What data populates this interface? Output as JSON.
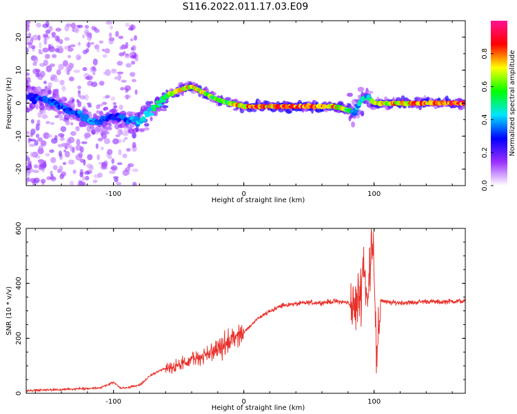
{
  "title": "S116.2022.011.17.03.E09",
  "colors": {
    "snr_line": "#e8302a",
    "spectrogram_background": "#ffffff"
  },
  "chart_data": [
    {
      "type": "heatmap",
      "title": "S116.2022.011.17.03.E09",
      "xlabel": "Height of straight line (km)",
      "ylabel": "Frequency (Hz)",
      "xlim": [
        -167,
        170
      ],
      "ylim": [
        -25,
        25
      ],
      "x_ticks": [
        -100,
        0,
        100
      ],
      "x_tick_labels": [
        "-100",
        "0",
        "100"
      ],
      "y_ticks": [
        -20,
        -10,
        0,
        10,
        20
      ],
      "y_tick_labels": [
        "-20",
        "-10",
        "0",
        "10",
        "20"
      ],
      "colorbar": {
        "label": "Normalized spectral amplitude",
        "range": [
          0,
          1
        ],
        "ticks": [
          0.0,
          0.2,
          0.4,
          0.6,
          0.8
        ],
        "tick_labels": [
          "0.0",
          "0.2",
          "0.4",
          "0.6",
          "0.8"
        ],
        "colormap": [
          "#ffffff",
          "#9b30ff",
          "#0000ff",
          "#00e5ff",
          "#00ff00",
          "#ffff00",
          "#ff0000",
          "#ff1493"
        ]
      },
      "ridge": {
        "x": [
          -167,
          -150,
          -130,
          -115,
          -100,
          -90,
          -80,
          -70,
          -60,
          -50,
          -40,
          -30,
          -20,
          -10,
          0,
          20,
          40,
          60,
          70,
          80,
          85,
          90,
          95,
          100,
          120,
          140,
          170
        ],
        "y": [
          2,
          1,
          -3,
          -6,
          -4,
          -5,
          -6,
          -2,
          2,
          4,
          5,
          3,
          1,
          0,
          -1,
          -1,
          -1,
          -1,
          -1,
          -2,
          -3,
          1,
          2,
          0,
          0,
          0,
          0
        ],
        "amplitude": [
          0.3,
          0.35,
          0.35,
          0.4,
          0.3,
          0.35,
          0.45,
          0.55,
          0.6,
          0.7,
          0.75,
          0.7,
          0.6,
          0.65,
          0.85,
          0.85,
          0.9,
          0.88,
          0.8,
          0.6,
          0.4,
          0.5,
          0.45,
          0.7,
          0.8,
          0.85,
          0.9
        ]
      }
    },
    {
      "type": "line",
      "xlabel": "Height of straight line (km)",
      "ylabel": "SNR (10 * v/v)",
      "xlim": [
        -167,
        170
      ],
      "ylim": [
        0,
        600
      ],
      "x_ticks": [
        -100,
        0,
        100
      ],
      "x_tick_labels": [
        "-100",
        "0",
        "100"
      ],
      "y_ticks": [
        0,
        200,
        400,
        600
      ],
      "y_tick_labels": [
        "0",
        "200",
        "400",
        "600"
      ],
      "series": [
        {
          "x": [
            -167,
            -150,
            -130,
            -110,
            -100,
            -95,
            -90,
            -80,
            -70,
            -60,
            -50,
            -40,
            -30,
            -20,
            -10,
            0,
            10,
            20,
            30,
            40,
            50,
            60,
            70,
            80,
            85,
            90,
            92,
            95,
            98,
            100,
            102,
            105,
            110,
            120,
            130,
            140,
            150,
            160,
            170
          ],
          "y": [
            10,
            12,
            15,
            20,
            40,
            20,
            20,
            30,
            70,
            90,
            100,
            120,
            140,
            160,
            190,
            220,
            270,
            300,
            320,
            325,
            330,
            330,
            335,
            330,
            300,
            380,
            500,
            300,
            600,
            500,
            80,
            340,
            330,
            330,
            330,
            335,
            332,
            335,
            335
          ]
        }
      ]
    }
  ]
}
